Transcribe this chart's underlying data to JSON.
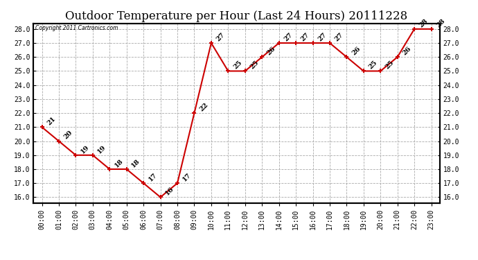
{
  "title": "Outdoor Temperature per Hour (Last 24 Hours) 20111228",
  "copyright": "Copyright 2011 Cartronics.com",
  "hours": [
    "00:00",
    "01:00",
    "02:00",
    "03:00",
    "04:00",
    "05:00",
    "06:00",
    "07:00",
    "08:00",
    "09:00",
    "10:00",
    "11:00",
    "12:00",
    "13:00",
    "14:00",
    "15:00",
    "16:00",
    "17:00",
    "18:00",
    "19:00",
    "20:00",
    "21:00",
    "22:00",
    "23:00"
  ],
  "temps": [
    21,
    20,
    19,
    19,
    18,
    18,
    17,
    16,
    17,
    22,
    27,
    25,
    25,
    26,
    27,
    27,
    27,
    27,
    26,
    25,
    25,
    26,
    28,
    28
  ],
  "line_color": "#cc0000",
  "marker_color": "#cc0000",
  "bg_color": "#ffffff",
  "plot_bg_color": "#ffffff",
  "grid_color": "#aaaaaa",
  "title_fontsize": 12,
  "label_fontsize": 7,
  "tick_fontsize": 7,
  "ylim_min": 15.6,
  "ylim_max": 28.4,
  "ytick_min": 16,
  "ytick_max": 28,
  "ytick_step": 1
}
